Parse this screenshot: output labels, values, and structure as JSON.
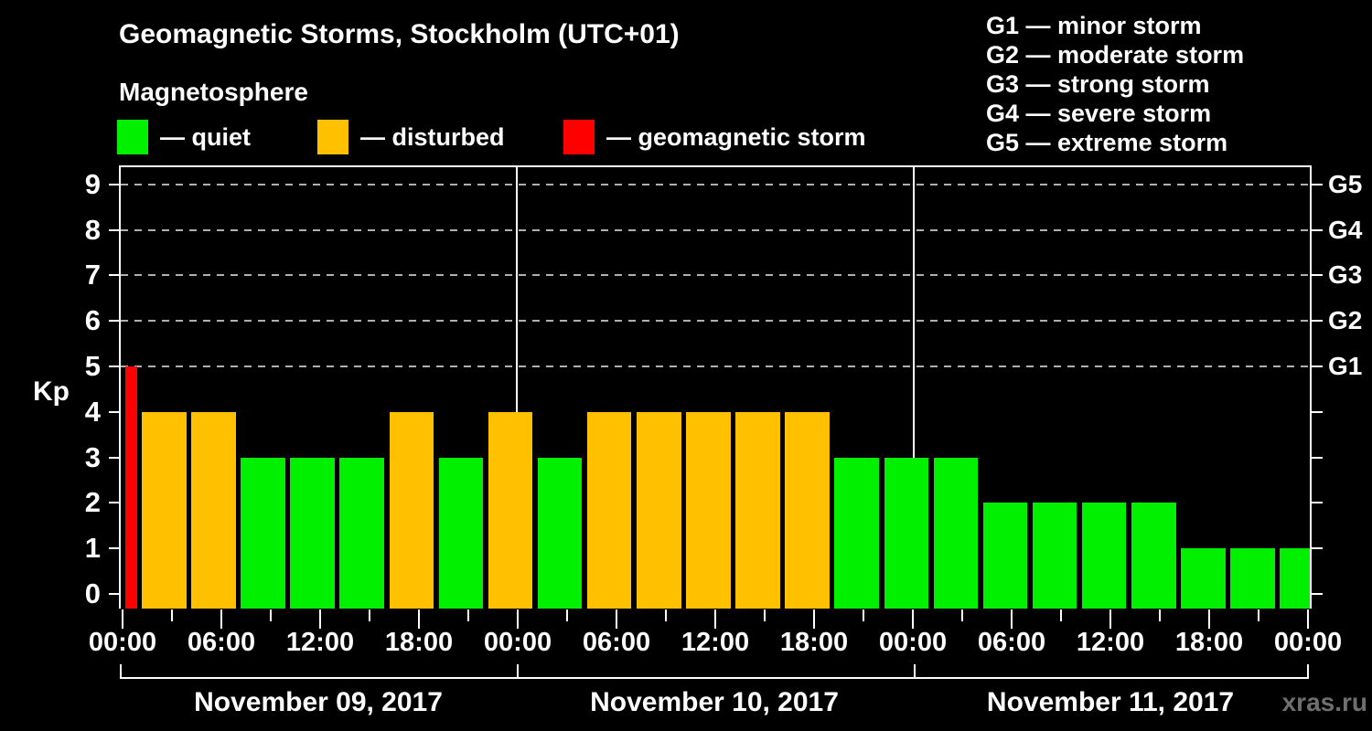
{
  "header": {
    "title": "Geomagnetic Storms, Stockholm (UTC+01)",
    "subtitle": "Magnetosphere"
  },
  "legend": {
    "items": [
      {
        "key": "quiet",
        "label": "— quiet",
        "color": "#00f000"
      },
      {
        "key": "disturbed",
        "label": "— disturbed",
        "color": "#ffc000"
      },
      {
        "key": "storm",
        "label": "— geomagnetic storm",
        "color": "#ff0000"
      }
    ]
  },
  "storm_scale": [
    {
      "code": "G1",
      "text": "G1 — minor storm"
    },
    {
      "code": "G2",
      "text": "G2 — moderate storm"
    },
    {
      "code": "G3",
      "text": "G3 — strong storm"
    },
    {
      "code": "G4",
      "text": "G4 — severe storm"
    },
    {
      "code": "G5",
      "text": "G5 — extreme storm"
    }
  ],
  "chart_data": {
    "type": "bar",
    "title": "Geomagnetic Storms, Stockholm (UTC+01)",
    "ylabel": "Kp",
    "ylim": [
      0,
      9
    ],
    "yticks": [
      0,
      1,
      2,
      3,
      4,
      5,
      6,
      7,
      8,
      9
    ],
    "grid_levels": [
      5,
      6,
      7,
      8,
      9
    ],
    "right_axis": [
      {
        "kp": 5,
        "label": "G1"
      },
      {
        "kp": 6,
        "label": "G2"
      },
      {
        "kp": 7,
        "label": "G3"
      },
      {
        "kp": 8,
        "label": "G4"
      },
      {
        "kp": 9,
        "label": "G5"
      }
    ],
    "x_time_ticks": [
      "00:00",
      "06:00",
      "12:00",
      "18:00",
      "00:00",
      "06:00",
      "12:00",
      "18:00",
      "00:00",
      "06:00",
      "12:00",
      "18:00",
      "00:00"
    ],
    "days": [
      "November 09, 2017",
      "November 10, 2017",
      "November 11, 2017"
    ],
    "leading_partial_interval": {
      "kp": 5,
      "status": "storm"
    },
    "series": [
      {
        "day": "November 09, 2017",
        "interval_hours": 3,
        "values": [
          4,
          4,
          3,
          3,
          3,
          4,
          3,
          4
        ]
      },
      {
        "day": "November 10, 2017",
        "interval_hours": 3,
        "values": [
          3,
          4,
          4,
          4,
          4,
          4,
          3,
          3
        ]
      },
      {
        "day": "November 11, 2017",
        "interval_hours": 3,
        "values": [
          3,
          2,
          2,
          2,
          2,
          1,
          1,
          1
        ]
      }
    ],
    "status_colors": {
      "quiet": "#00f000",
      "disturbed": "#ffc000",
      "storm": "#ff0000"
    },
    "color_rule": "kp <= 3 quiet, kp = 4 disturbed, kp >= 5 storm",
    "axis_color": "#ffffff",
    "grid_color": "#b0b0b0",
    "legend_position": "top-left and top-right",
    "grid": "dashed horizontal at G-levels only"
  },
  "watermark": {
    "text": "xras.ru",
    "color": "#6f6f6f"
  }
}
